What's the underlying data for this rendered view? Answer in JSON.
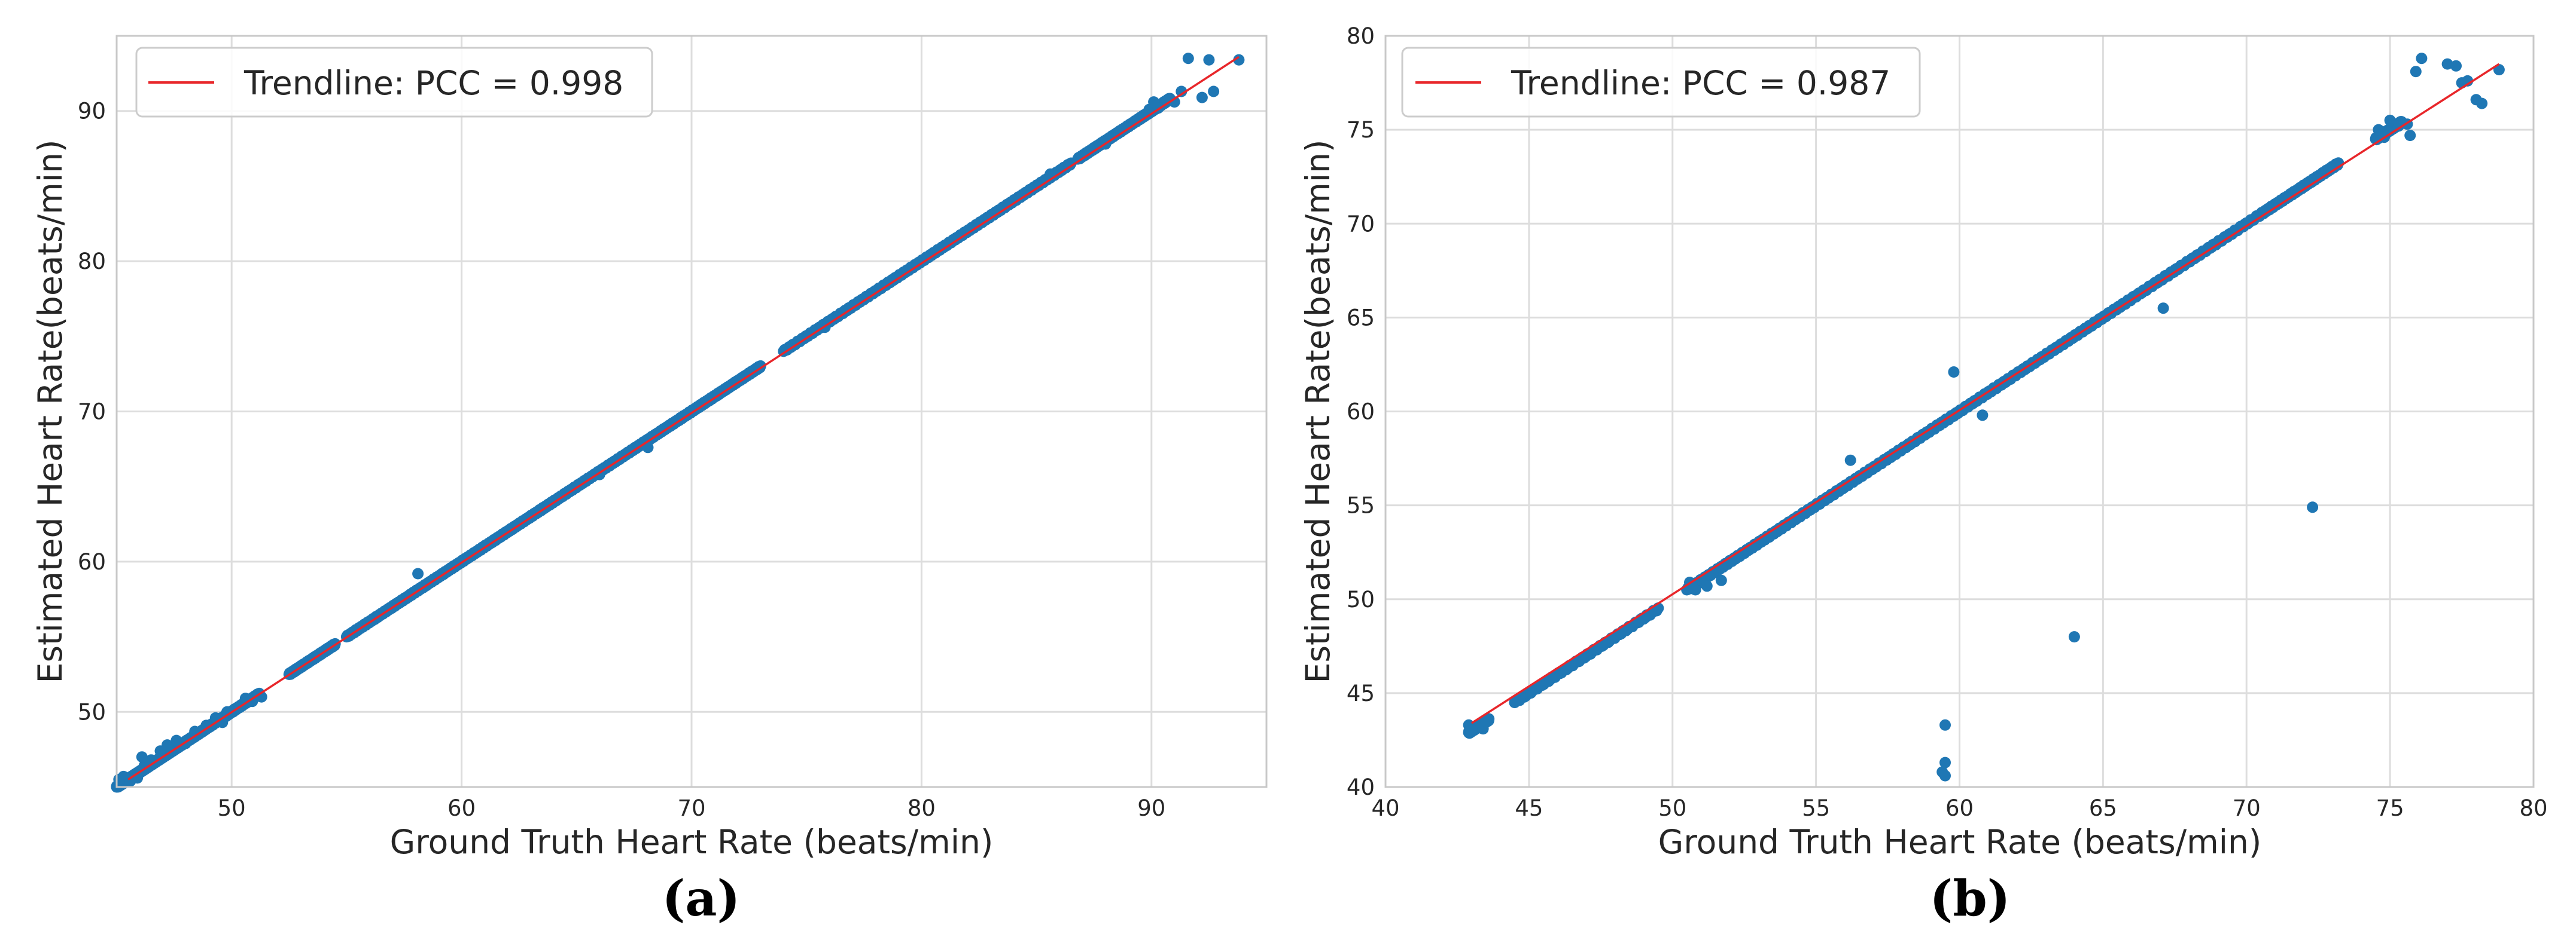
{
  "colors": {
    "points": "#1f77b4",
    "trendline": "#e8262a",
    "grid": "#dddddd"
  },
  "chart_data": [
    {
      "type": "scatter",
      "panel": "a",
      "caption": "(a)",
      "xlabel": "Ground Truth Heart Rate (beats/min)",
      "ylabel": "Estimated Heart Rate(beats/min)",
      "xlim": [
        45,
        95
      ],
      "ylim": [
        45,
        95
      ],
      "xticks": [
        50,
        60,
        70,
        80,
        90
      ],
      "yticks": [
        50,
        60,
        70,
        80,
        90
      ],
      "grid": true,
      "legend": {
        "label": "Trendline: PCC = 0.998",
        "position": "top-left"
      },
      "trendline": [
        [
          45.5,
          45.5
        ],
        [
          93.8,
          93.6
        ]
      ],
      "diagonal_samples": [
        [
          45.0,
          45.4,
          90
        ],
        [
          45.4,
          45.8,
          90
        ],
        [
          45.8,
          46.4,
          90
        ],
        [
          46.4,
          47.5,
          90
        ],
        [
          47.5,
          48.8,
          90
        ],
        [
          48.8,
          51.2,
          90
        ],
        [
          52.5,
          54.5,
          90
        ],
        [
          55.0,
          58.0,
          90
        ],
        [
          58.0,
          61.0,
          90
        ],
        [
          61.0,
          64.0,
          90
        ],
        [
          64.0,
          67.5,
          90
        ],
        [
          67.5,
          70.5,
          90
        ],
        [
          70.5,
          73.0,
          90
        ],
        [
          74.0,
          78.5,
          90
        ],
        [
          78.5,
          82.5,
          90
        ],
        [
          82.5,
          86.5,
          90
        ],
        [
          86.8,
          89.5,
          90
        ],
        [
          89.5,
          90.8,
          90
        ]
      ],
      "points": [
        [
          45.1,
          45.5
        ],
        [
          45.3,
          45.7
        ],
        [
          45.6,
          45.4
        ],
        [
          45.9,
          45.6
        ],
        [
          46.2,
          46.4
        ],
        [
          46.5,
          46.8
        ],
        [
          46.1,
          47.0
        ],
        [
          46.9,
          47.4
        ],
        [
          47.2,
          47.8
        ],
        [
          47.6,
          48.1
        ],
        [
          48.0,
          47.9
        ],
        [
          48.4,
          48.7
        ],
        [
          48.9,
          49.1
        ],
        [
          49.3,
          49.6
        ],
        [
          49.6,
          49.3
        ],
        [
          49.8,
          50.0
        ],
        [
          50.6,
          50.9
        ],
        [
          50.9,
          50.7
        ],
        [
          51.3,
          51.0
        ],
        [
          58.1,
          59.2
        ],
        [
          68.1,
          67.6
        ],
        [
          66.0,
          65.8
        ],
        [
          75.8,
          75.6
        ],
        [
          85.6,
          85.8
        ],
        [
          88.0,
          87.8
        ],
        [
          89.7,
          89.7
        ],
        [
          89.9,
          90.1
        ],
        [
          90.1,
          90.6
        ],
        [
          90.3,
          90.2
        ],
        [
          90.7,
          90.7
        ],
        [
          91.0,
          90.6
        ],
        [
          91.3,
          91.3
        ],
        [
          91.6,
          93.5
        ],
        [
          92.2,
          90.9
        ],
        [
          92.5,
          93.4
        ],
        [
          92.7,
          91.3
        ],
        [
          93.8,
          93.4
        ]
      ]
    },
    {
      "type": "scatter",
      "panel": "b",
      "caption": "(b)",
      "xlabel": "Ground Truth Heart Rate (beats/min)",
      "ylabel": "Estimated Heart Rate(beats/min)",
      "xlim": [
        40,
        80
      ],
      "ylim": [
        40,
        80
      ],
      "xticks": [
        40,
        45,
        50,
        55,
        60,
        65,
        70,
        75,
        80
      ],
      "yticks": [
        40,
        45,
        50,
        55,
        60,
        65,
        70,
        75,
        80
      ],
      "grid": true,
      "legend": {
        "label": "Trendline: PCC = 0.987",
        "position": "top-left"
      },
      "trendline": [
        [
          43.0,
          43.4
        ],
        [
          78.8,
          78.5
        ]
      ],
      "diagonal_samples": [
        [
          42.9,
          43.6,
          90
        ],
        [
          44.5,
          49.5,
          90
        ],
        [
          50.5,
          54.0,
          90
        ],
        [
          54.0,
          58.0,
          90
        ],
        [
          58.0,
          62.0,
          90
        ],
        [
          62.0,
          66.0,
          90
        ],
        [
          66.0,
          70.5,
          90
        ],
        [
          70.5,
          73.2,
          90
        ],
        [
          74.5,
          75.4,
          90
        ]
      ],
      "points": [
        [
          42.9,
          43.3
        ],
        [
          43.0,
          43.0
        ],
        [
          43.2,
          43.3
        ],
        [
          43.4,
          43.1
        ],
        [
          43.5,
          43.5
        ],
        [
          50.6,
          50.9
        ],
        [
          50.8,
          50.5
        ],
        [
          51.2,
          50.7
        ],
        [
          51.7,
          51.0
        ],
        [
          56.2,
          57.4
        ],
        [
          56.8,
          56.8
        ],
        [
          59.5,
          43.3
        ],
        [
          59.5,
          41.3
        ],
        [
          59.4,
          40.8
        ],
        [
          59.5,
          40.6
        ],
        [
          59.8,
          62.1
        ],
        [
          60.8,
          59.8
        ],
        [
          64.0,
          48.0
        ],
        [
          67.1,
          65.5
        ],
        [
          72.3,
          54.9
        ],
        [
          74.6,
          75.0
        ],
        [
          74.8,
          74.6
        ],
        [
          75.0,
          75.5
        ],
        [
          75.3,
          75.2
        ],
        [
          75.6,
          75.3
        ],
        [
          75.7,
          74.7
        ],
        [
          75.9,
          78.1
        ],
        [
          76.1,
          78.8
        ],
        [
          77.0,
          78.5
        ],
        [
          77.3,
          78.4
        ],
        [
          77.5,
          77.5
        ],
        [
          77.7,
          77.6
        ],
        [
          78.0,
          76.6
        ],
        [
          78.2,
          76.4
        ],
        [
          78.8,
          78.2
        ]
      ]
    }
  ]
}
